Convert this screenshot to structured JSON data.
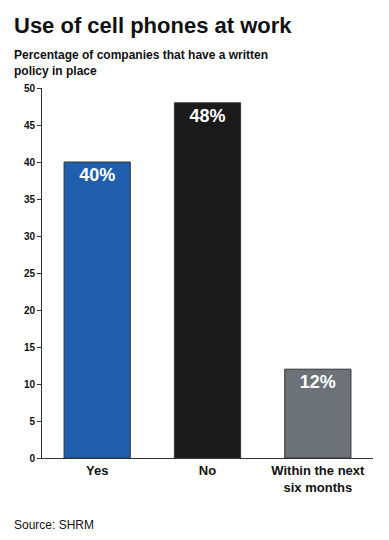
{
  "chart_data": {
    "type": "bar",
    "title": "Use of cell phones at work",
    "subtitle": "Percentage of companies that have a written policy in place",
    "source": "Source: SHRM",
    "categories": [
      "Yes",
      "No",
      "Within the next six months"
    ],
    "values": [
      40,
      48,
      12
    ],
    "value_labels": [
      "40%",
      "48%",
      "12%"
    ],
    "colors": [
      "#1f5fae",
      "#1a1a1a",
      "#6d7278"
    ],
    "data_labels": true,
    "ylim": [
      0,
      50
    ],
    "yticks": [
      0,
      5,
      10,
      15,
      20,
      25,
      30,
      35,
      40,
      45,
      50
    ],
    "grid": false
  }
}
